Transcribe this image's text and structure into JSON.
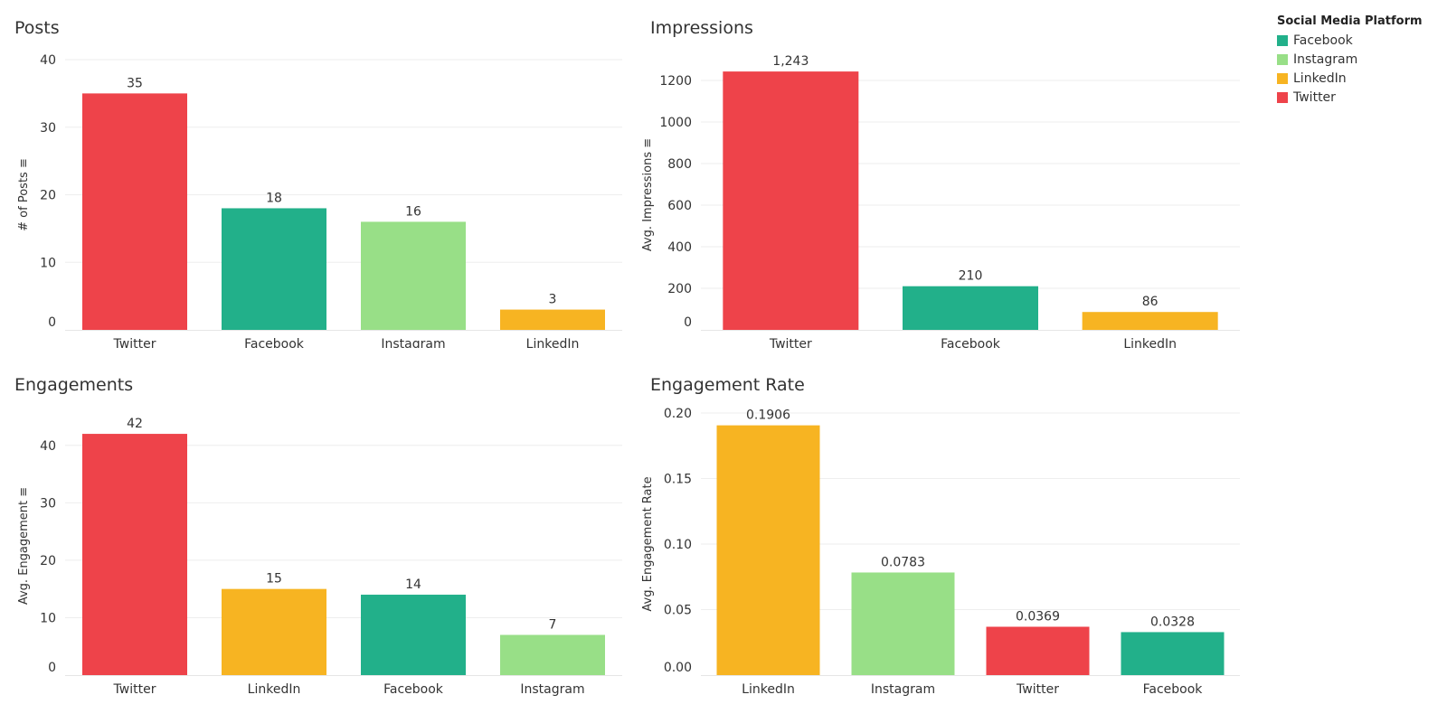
{
  "colors": {
    "Facebook": "#22b08a",
    "Instagram": "#98df87",
    "LinkedIn": "#f7b422",
    "Twitter": "#ee434a",
    "grid": "#eeeeee",
    "text": "#333333"
  },
  "legend": {
    "title": "Social Media Platform",
    "items": [
      "Facebook",
      "Instagram",
      "LinkedIn",
      "Twitter"
    ]
  },
  "chart_data": [
    {
      "type": "bar",
      "title": "Posts",
      "ylabel": "# of Posts",
      "xlabel": "",
      "categories": [
        "Twitter",
        "Facebook",
        "Instagram",
        "LinkedIn"
      ],
      "values": [
        35,
        18,
        16,
        3
      ],
      "labels": [
        "35",
        "18",
        "16",
        "3"
      ],
      "ylim": [
        0,
        40
      ],
      "yticks": [
        0,
        10,
        20,
        30,
        40
      ],
      "ytick_labels": [
        "0",
        "10",
        "20",
        "30",
        "40"
      ],
      "sort_icon": true
    },
    {
      "type": "bar",
      "title": "Impressions",
      "ylabel": "Avg. Impressions",
      "xlabel": "",
      "categories": [
        "Twitter",
        "Facebook",
        "LinkedIn"
      ],
      "values": [
        1243,
        210,
        86
      ],
      "labels": [
        "1,243",
        "210",
        "86"
      ],
      "ylim": [
        0,
        1300
      ],
      "yticks": [
        0,
        200,
        400,
        600,
        800,
        1000,
        1200
      ],
      "ytick_labels": [
        "0",
        "200",
        "400",
        "600",
        "800",
        "1000",
        "1200"
      ],
      "sort_icon": true
    },
    {
      "type": "bar",
      "title": "Engagements",
      "ylabel": "Avg. Engagement",
      "xlabel": "",
      "categories": [
        "Twitter",
        "LinkedIn",
        "Facebook",
        "Instagram"
      ],
      "values": [
        42,
        15,
        14,
        7
      ],
      "labels": [
        "42",
        "15",
        "14",
        "7"
      ],
      "ylim": [
        0,
        45
      ],
      "yticks": [
        0,
        10,
        20,
        30,
        40
      ],
      "ytick_labels": [
        "0",
        "10",
        "20",
        "30",
        "40"
      ],
      "sort_icon": true
    },
    {
      "type": "bar",
      "title": "Engagement Rate",
      "ylabel": "Avg. Engagement Rate",
      "xlabel": "",
      "categories": [
        "LinkedIn",
        "Instagram",
        "Twitter",
        "Facebook"
      ],
      "values": [
        0.1906,
        0.0783,
        0.0369,
        0.0328
      ],
      "labels": [
        "0.1906",
        "0.0783",
        "0.0369",
        "0.0328"
      ],
      "ylim": [
        0,
        0.2
      ],
      "yticks": [
        0,
        0.05,
        0.1,
        0.15,
        0.2
      ],
      "ytick_labels": [
        "0.00",
        "0.05",
        "0.10",
        "0.15",
        "0.20"
      ],
      "sort_icon": false
    }
  ]
}
